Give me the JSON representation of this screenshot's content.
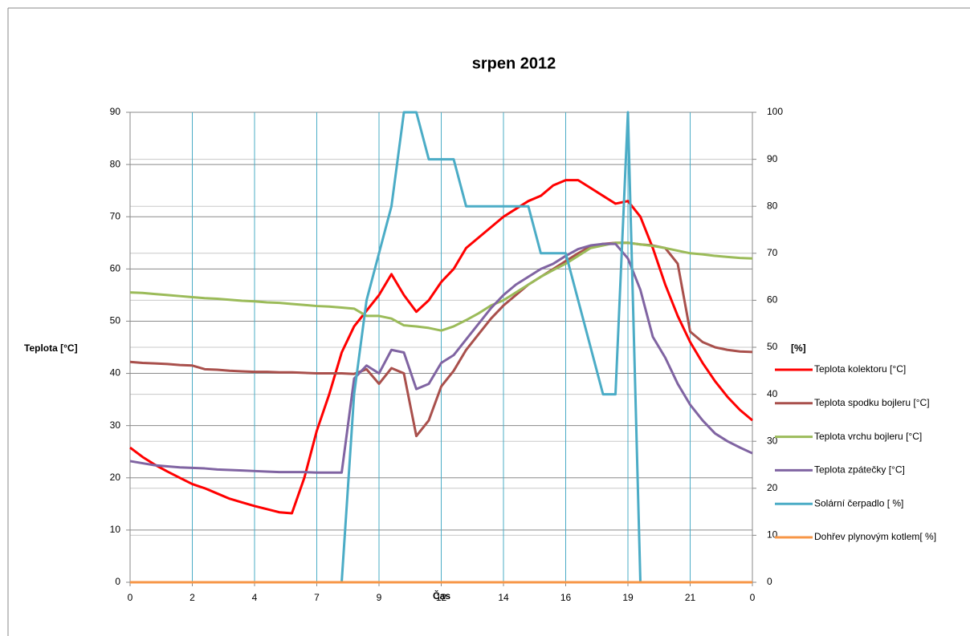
{
  "chart_data": {
    "type": "line",
    "title": "srpen 2012",
    "xlabel": "Čas",
    "ylabel": "Teplota [°C]",
    "y2label": "[%]",
    "x": [
      0,
      1,
      2,
      3,
      4,
      5,
      6,
      7,
      8,
      9,
      10,
      11,
      12,
      13,
      14,
      15,
      16,
      17,
      18,
      19,
      20,
      21,
      22,
      23,
      24,
      25,
      26,
      27,
      28,
      29,
      30,
      31,
      32,
      33,
      34,
      35,
      36,
      37,
      38,
      39,
      40,
      41,
      42,
      43,
      44,
      45,
      46,
      47,
      48,
      49,
      50
    ],
    "xlim": [
      0,
      50
    ],
    "xticks": [
      {
        "value": 0,
        "label": "0"
      },
      {
        "value": 5,
        "label": "2"
      },
      {
        "value": 10,
        "label": "4"
      },
      {
        "value": 15,
        "label": "7"
      },
      {
        "value": 20,
        "label": "9"
      },
      {
        "value": 25,
        "label": "12"
      },
      {
        "value": 30,
        "label": "14"
      },
      {
        "value": 35,
        "label": "16"
      },
      {
        "value": 40,
        "label": "19"
      },
      {
        "value": 45,
        "label": "21"
      },
      {
        "value": 50,
        "label": "0"
      }
    ],
    "ylim": [
      0,
      90
    ],
    "yticks": [
      0,
      10,
      20,
      30,
      40,
      50,
      60,
      70,
      80,
      90
    ],
    "y2lim": [
      0,
      100
    ],
    "y2ticks": [
      0,
      10,
      20,
      30,
      40,
      50,
      60,
      70,
      80,
      90,
      100
    ],
    "grid": true,
    "legend": "right",
    "series": [
      {
        "name": "Teplota kolektoru [°C]",
        "color": "#ff0000",
        "values": [
          25.8,
          24,
          22.5,
          21.2,
          20,
          18.8,
          18,
          17,
          16,
          15.3,
          14.6,
          14,
          13.4,
          13.2,
          20,
          29,
          36,
          44,
          49,
          52,
          55,
          59,
          55,
          51.8,
          54,
          57.5,
          60,
          64,
          66,
          68,
          70,
          71.5,
          73,
          74,
          76,
          77,
          77,
          75.5,
          74,
          72.5,
          73,
          70,
          64,
          57,
          51,
          46,
          42,
          38.5,
          35.5,
          33,
          31
        ]
      },
      {
        "name": "Teplota spodku bojleru [°C]",
        "color": "#a9504c",
        "values": [
          42.2,
          42,
          41.9,
          41.8,
          41.6,
          41.5,
          40.8,
          40.7,
          40.5,
          40.4,
          40.3,
          40.3,
          40.2,
          40.2,
          40.1,
          40,
          40,
          40,
          39.9,
          40.8,
          38,
          41,
          40,
          28,
          31,
          37.5,
          40.5,
          44.5,
          47.5,
          50.5,
          53,
          55,
          57,
          58.5,
          60,
          61.5,
          63,
          64.3,
          64.8,
          65,
          65,
          64.7,
          64.5,
          64,
          61,
          48,
          46,
          45,
          44.5,
          44.2,
          44.1
        ]
      },
      {
        "name": "Teplota vrchu bojleru [°C]",
        "color": "#9bbb59",
        "values": [
          55.5,
          55.4,
          55.2,
          55,
          54.8,
          54.6,
          54.4,
          54.3,
          54.1,
          53.9,
          53.8,
          53.6,
          53.5,
          53.3,
          53.1,
          52.9,
          52.8,
          52.6,
          52.4,
          51,
          51,
          50.5,
          49.2,
          49,
          48.7,
          48.2,
          49,
          50.2,
          51.5,
          53,
          54,
          55.5,
          57,
          58.5,
          59.8,
          61,
          62.5,
          64,
          64.5,
          65,
          65,
          64.7,
          64.4,
          64,
          63.5,
          63,
          62.8,
          62.5,
          62.3,
          62.1,
          62
        ]
      },
      {
        "name": "Teplota zpátečky [°C]",
        "color": "#8064a2",
        "values": [
          23.2,
          22.8,
          22.4,
          22.2,
          22,
          21.9,
          21.8,
          21.6,
          21.5,
          21.4,
          21.3,
          21.2,
          21.1,
          21.1,
          21.1,
          21,
          21,
          21,
          39,
          41.5,
          40,
          44.5,
          44,
          37,
          38,
          42,
          43.5,
          46.5,
          49.5,
          52.5,
          55,
          57,
          58.5,
          60,
          61,
          62.5,
          63.8,
          64.5,
          64.8,
          64.8,
          62,
          56,
          47,
          43,
          38,
          34,
          31,
          28.5,
          27,
          25.8,
          24.7
        ]
      },
      {
        "name": "Solární čerpadlo [ %]",
        "color": "#4bacc6",
        "axis": "y2",
        "values": [
          0,
          0,
          0,
          0,
          0,
          0,
          0,
          0,
          0,
          0,
          0,
          0,
          0,
          0,
          0,
          0,
          0,
          0,
          40,
          60,
          70,
          80,
          100,
          100,
          90,
          90,
          90,
          80,
          80,
          80,
          80,
          80,
          80,
          70,
          70,
          70,
          60,
          50,
          40,
          40,
          100,
          0,
          0,
          0,
          0,
          0,
          0,
          0,
          0,
          0,
          0
        ]
      },
      {
        "name": "Dohřev plynovým kotlem[ %]",
        "color": "#f79646",
        "axis": "y2",
        "values": [
          0,
          0,
          0,
          0,
          0,
          0,
          0,
          0,
          0,
          0,
          0,
          0,
          0,
          0,
          0,
          0,
          0,
          0,
          0,
          0,
          0,
          0,
          0,
          0,
          0,
          0,
          0,
          0,
          0,
          0,
          0,
          0,
          0,
          0,
          0,
          0,
          0,
          0,
          0,
          0,
          0,
          0,
          0,
          0,
          0,
          0,
          0,
          0,
          0,
          0,
          0
        ]
      }
    ]
  }
}
